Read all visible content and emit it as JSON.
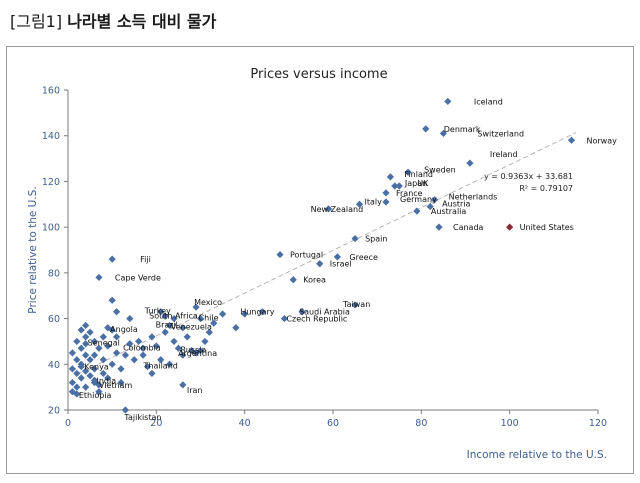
{
  "figure": {
    "label": "[그림1]",
    "title": "나라별 소득 대비 물가"
  },
  "chart_data": {
    "type": "scatter",
    "title": "Prices versus income",
    "xlabel": "Income relative to the U.S.",
    "ylabel": "Price relative to the U.S.",
    "xlim": [
      0,
      120
    ],
    "ylim": [
      20,
      160
    ],
    "xticks": [
      "0",
      "20",
      "40",
      "60",
      "80",
      "100",
      "120"
    ],
    "yticks": [
      "20",
      "40",
      "60",
      "80",
      "100",
      "120",
      "140",
      "160"
    ],
    "grid": false,
    "point_color": "#4a6fa5",
    "highlight_color": "#8b2a3a",
    "trendline": {
      "equation": "y = 0.9363x + 33.681",
      "r2": "R² = 0.79107",
      "slope": 0.9363,
      "intercept": 33.681,
      "x_range": [
        2,
        115
      ],
      "color": "#b5b5b5"
    },
    "labeled_points": [
      {
        "label": "Iceland",
        "x": 86,
        "y": 155
      },
      {
        "label": "Denmark",
        "x": 81,
        "y": 143
      },
      {
        "label": "Switzerland",
        "x": 85,
        "y": 141
      },
      {
        "label": "Norway",
        "x": 114,
        "y": 138
      },
      {
        "label": "Ireland",
        "x": 91,
        "y": 128
      },
      {
        "label": "Sweden",
        "x": 77,
        "y": 124
      },
      {
        "label": "Finland",
        "x": 73,
        "y": 122
      },
      {
        "label": "Japan",
        "x": 74,
        "y": 118
      },
      {
        "label": "UK",
        "x": 75,
        "y": 118
      },
      {
        "label": "France",
        "x": 72,
        "y": 115
      },
      {
        "label": "Netherlands",
        "x": 83,
        "y": 112
      },
      {
        "label": "Germany",
        "x": 72,
        "y": 111
      },
      {
        "label": "Austria",
        "x": 82,
        "y": 109
      },
      {
        "label": "Italy",
        "x": 66,
        "y": 110
      },
      {
        "label": "New Zealand",
        "x": 59,
        "y": 108
      },
      {
        "label": "Australia",
        "x": 79,
        "y": 107
      },
      {
        "label": "Canada",
        "x": 84,
        "y": 100
      },
      {
        "label": "United States",
        "x": 100,
        "y": 100,
        "highlight": true
      },
      {
        "label": "Spain",
        "x": 65,
        "y": 95
      },
      {
        "label": "Portugal",
        "x": 48,
        "y": 88
      },
      {
        "label": "Greece",
        "x": 61,
        "y": 87
      },
      {
        "label": "Israel",
        "x": 57,
        "y": 84
      },
      {
        "label": "Korea",
        "x": 51,
        "y": 77
      },
      {
        "label": "Fiji",
        "x": 10,
        "y": 86
      },
      {
        "label": "Cape Verde",
        "x": 7,
        "y": 78
      },
      {
        "label": "Hungary",
        "x": 44,
        "y": 63
      },
      {
        "label": "Saudi Arabia",
        "x": 53,
        "y": 63
      },
      {
        "label": "Czech Republic",
        "x": 49,
        "y": 60
      },
      {
        "label": "Taiwan",
        "x": 65,
        "y": 66
      },
      {
        "label": "Mexico",
        "x": 29,
        "y": 65
      },
      {
        "label": "Turkey",
        "x": 21,
        "y": 63
      },
      {
        "label": "South Africa",
        "x": 22,
        "y": 61
      },
      {
        "label": "Chile",
        "x": 30,
        "y": 60
      },
      {
        "label": "Brazil",
        "x": 23,
        "y": 57
      },
      {
        "label": "Venezuela",
        "x": 26,
        "y": 56
      },
      {
        "label": "Angola",
        "x": 10,
        "y": 55
      },
      {
        "label": "Senegal",
        "x": 4,
        "y": 49
      },
      {
        "label": "Colombia",
        "x": 17,
        "y": 47
      },
      {
        "label": "Russia",
        "x": 30,
        "y": 46
      },
      {
        "label": "Argentina",
        "x": 29,
        "y": 45
      },
      {
        "label": "Thailand",
        "x": 18,
        "y": 39
      },
      {
        "label": "Kenya",
        "x": 3,
        "y": 39
      },
      {
        "label": "India",
        "x": 6,
        "y": 33
      },
      {
        "label": "Vietnam",
        "x": 7,
        "y": 31
      },
      {
        "label": "Iran",
        "x": 26,
        "y": 31
      },
      {
        "label": "Ethiopia",
        "x": 2,
        "y": 27
      },
      {
        "label": "Tajikistan",
        "x": 13,
        "y": 20
      }
    ],
    "unlabeled_points": [
      {
        "x": 1,
        "y": 45
      },
      {
        "x": 2,
        "y": 42
      },
      {
        "x": 1,
        "y": 38
      },
      {
        "x": 2,
        "y": 36
      },
      {
        "x": 3,
        "y": 34
      },
      {
        "x": 1,
        "y": 32
      },
      {
        "x": 2,
        "y": 30
      },
      {
        "x": 3,
        "y": 40
      },
      {
        "x": 4,
        "y": 37
      },
      {
        "x": 4,
        "y": 44
      },
      {
        "x": 5,
        "y": 42
      },
      {
        "x": 3,
        "y": 47
      },
      {
        "x": 2,
        "y": 50
      },
      {
        "x": 4,
        "y": 52
      },
      {
        "x": 3,
        "y": 55
      },
      {
        "x": 4,
        "y": 57
      },
      {
        "x": 5,
        "y": 54
      },
      {
        "x": 6,
        "y": 50
      },
      {
        "x": 7,
        "y": 47
      },
      {
        "x": 6,
        "y": 44
      },
      {
        "x": 8,
        "y": 42
      },
      {
        "x": 5,
        "y": 35
      },
      {
        "x": 6,
        "y": 38
      },
      {
        "x": 8,
        "y": 36
      },
      {
        "x": 9,
        "y": 34
      },
      {
        "x": 10,
        "y": 40
      },
      {
        "x": 11,
        "y": 45
      },
      {
        "x": 9,
        "y": 48
      },
      {
        "x": 8,
        "y": 52
      },
      {
        "x": 9,
        "y": 56
      },
      {
        "x": 11,
        "y": 52
      },
      {
        "x": 12,
        "y": 38
      },
      {
        "x": 13,
        "y": 44
      },
      {
        "x": 14,
        "y": 49
      },
      {
        "x": 15,
        "y": 42
      },
      {
        "x": 16,
        "y": 50
      },
      {
        "x": 17,
        "y": 44
      },
      {
        "x": 19,
        "y": 52
      },
      {
        "x": 20,
        "y": 48
      },
      {
        "x": 21,
        "y": 42
      },
      {
        "x": 22,
        "y": 54
      },
      {
        "x": 24,
        "y": 50
      },
      {
        "x": 25,
        "y": 47
      },
      {
        "x": 26,
        "y": 44
      },
      {
        "x": 27,
        "y": 52
      },
      {
        "x": 28,
        "y": 46
      },
      {
        "x": 31,
        "y": 50
      },
      {
        "x": 33,
        "y": 58
      },
      {
        "x": 35,
        "y": 62
      },
      {
        "x": 38,
        "y": 56
      },
      {
        "x": 40,
        "y": 62
      },
      {
        "x": 11,
        "y": 63
      },
      {
        "x": 14,
        "y": 60
      },
      {
        "x": 12,
        "y": 32
      },
      {
        "x": 7,
        "y": 28
      },
      {
        "x": 4,
        "y": 30
      },
      {
        "x": 1,
        "y": 28
      },
      {
        "x": 6,
        "y": 32
      },
      {
        "x": 19,
        "y": 36
      },
      {
        "x": 23,
        "y": 40
      },
      {
        "x": 10,
        "y": 68
      },
      {
        "x": 24,
        "y": 60
      },
      {
        "x": 32,
        "y": 54
      }
    ]
  }
}
